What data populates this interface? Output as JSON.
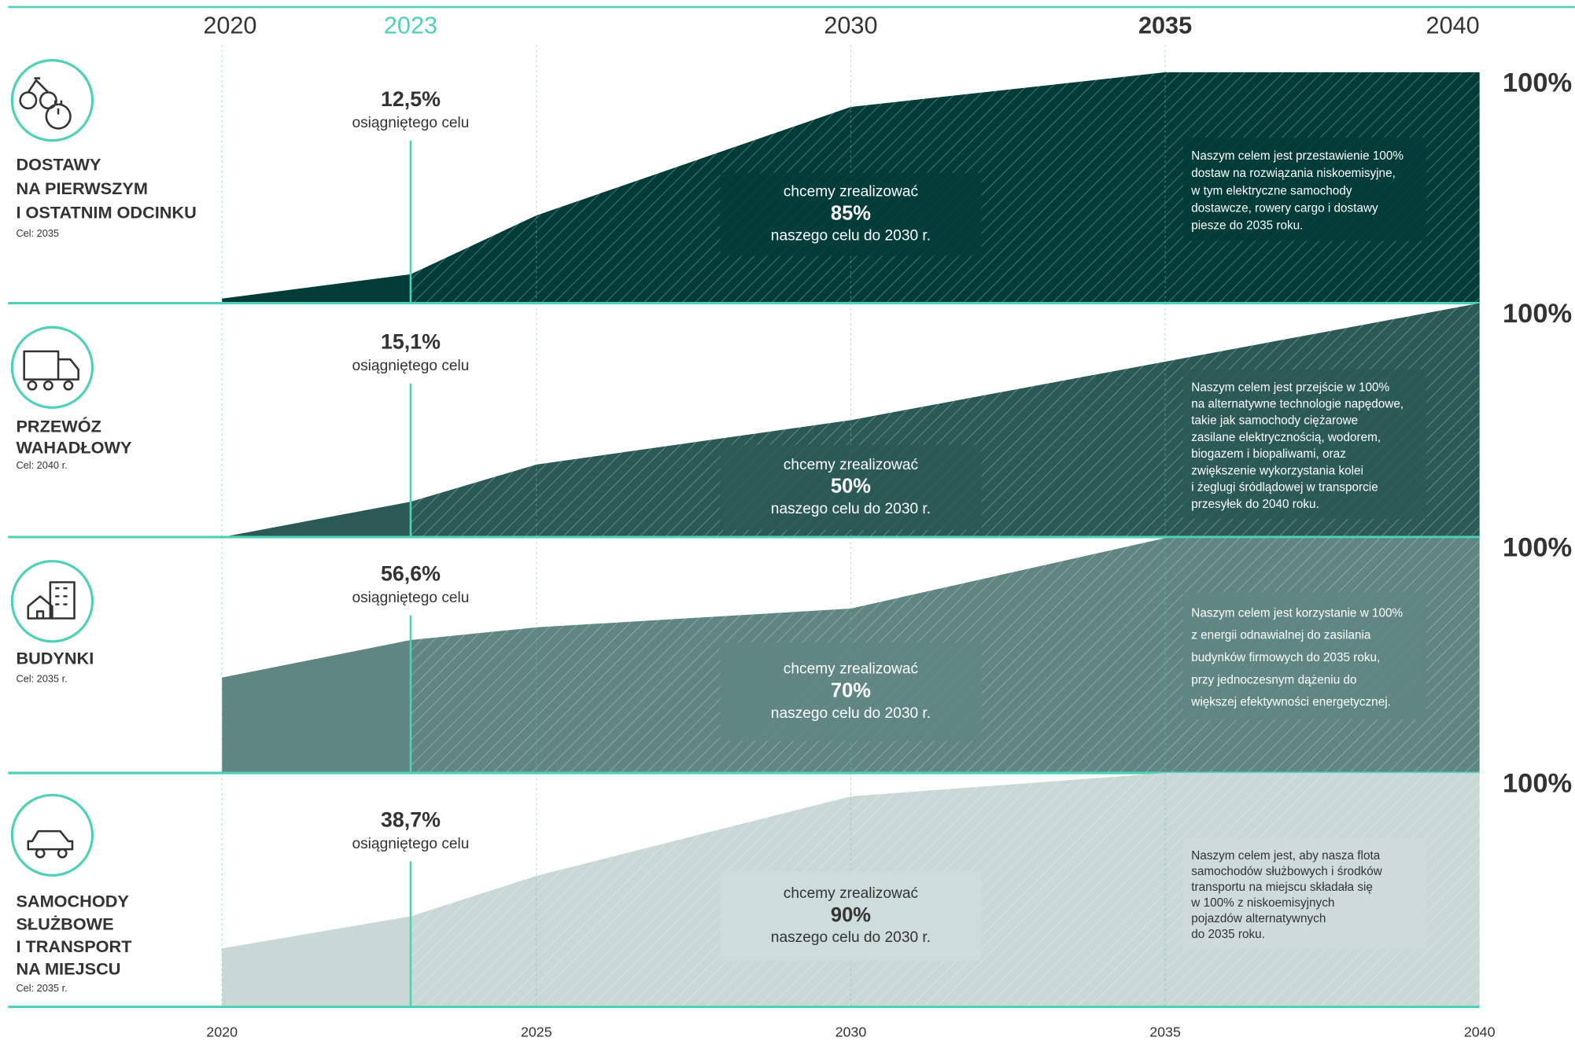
{
  "timeline": {
    "header_years": [
      2020,
      2023,
      2030,
      2035,
      2040
    ],
    "xticks": [
      2020,
      2025,
      2030,
      2035,
      2040
    ],
    "xlim": [
      2020,
      2040
    ]
  },
  "chart_data": [
    {
      "type": "area",
      "title_lines": [
        "DOSTAWY",
        "NA PIERWSZYM",
        "I OSTATNIM ODCINKU"
      ],
      "subtitle": "Cel: 2035",
      "x": [
        2020,
        2023,
        2025,
        2030,
        2035,
        2040
      ],
      "values": [
        2,
        12.5,
        38,
        85,
        100,
        100
      ],
      "ylim": [
        0,
        100
      ],
      "color": "#023c38",
      "achieved": "12,5%",
      "achieved_caption": "osiągniętego celu",
      "goal_intro": "chcemy zrealizować",
      "goal": "85%",
      "goal_caption": "naszego celu do 2030 r.",
      "note_lines": [
        "Naszym celem jest przestawienie 100%",
        "dostaw na rozwiązania niskoemisyjne,",
        "w tym elektryczne samochody",
        "dostawcze, rowery cargo i dostawy",
        "piesze do 2035 roku."
      ],
      "end_label": "100%"
    },
    {
      "type": "area",
      "title_lines": [
        "PRZEWÓZ",
        "WAHADŁOWY"
      ],
      "subtitle": "Cel: 2040 r.",
      "x": [
        2020,
        2023,
        2025,
        2030,
        2035,
        2040
      ],
      "values": [
        0,
        15.1,
        31,
        50,
        75,
        100
      ],
      "ylim": [
        0,
        100
      ],
      "color": "#2b5a56",
      "achieved": "15,1%",
      "achieved_caption": "osiągniętego celu",
      "goal_intro": "chcemy zrealizować",
      "goal": "50%",
      "goal_caption": "naszego celu do 2030 r.",
      "note_lines": [
        "Naszym celem jest przejście w 100%",
        "na alternatywne technologie napędowe,",
        "takie jak samochody ciężarowe",
        "zasilane elektrycznością, wodorem,",
        "biogazem i biopaliwami, oraz",
        "zwiększenie wykorzystania kolei",
        "i żeglugi śródlądowej w transporcie",
        "przesyłek do 2040 roku."
      ],
      "end_label": "100%"
    },
    {
      "type": "area",
      "title_lines": [
        "BUDYNKI"
      ],
      "subtitle": "Cel: 2035 r.",
      "x": [
        2020,
        2023,
        2025,
        2030,
        2035,
        2040
      ],
      "values": [
        40.6,
        56.6,
        62,
        70,
        100,
        100
      ],
      "ylim": [
        0,
        100
      ],
      "color": "#5f8683",
      "achieved": "56,6%",
      "achieved_caption": "osiągniętego celu",
      "goal_intro": "chcemy zrealizować",
      "goal": "70%",
      "goal_caption": "naszego celu do 2030 r.",
      "note_lines": [
        "Naszym celem jest korzystanie w 100%",
        "z energii odnawialnej do zasilania",
        "budynków firmowych do 2035 roku,",
        "przy jednoczesnym dążeniu do",
        "większej efektywności energetycznej."
      ],
      "end_label": "100%"
    },
    {
      "type": "area",
      "title_lines": [
        "SAMOCHODY",
        "SŁUŻBOWE",
        "I TRANSPORT",
        "NA MIEJSCU"
      ],
      "subtitle": "Cel: 2035 r.",
      "x": [
        2020,
        2023,
        2025,
        2030,
        2035,
        2040
      ],
      "values": [
        25,
        38.7,
        56,
        90,
        100,
        100
      ],
      "ylim": [
        0,
        100
      ],
      "color": "#c9d8d5",
      "achieved": "38,7%",
      "achieved_caption": "osiągniętego celu",
      "goal_intro": "chcemy zrealizować",
      "goal": "90%",
      "goal_caption": "naszego celu do 2030 r.",
      "note_lines": [
        "Naszym celem jest, aby nasza flota",
        "samochodów służbowych i środków",
        "transportu na miejscu składała się",
        "w 100% z niskoemisyjnych",
        "pojazdów alternatywnych",
        "do 2035 roku."
      ],
      "end_label": "100%"
    }
  ]
}
